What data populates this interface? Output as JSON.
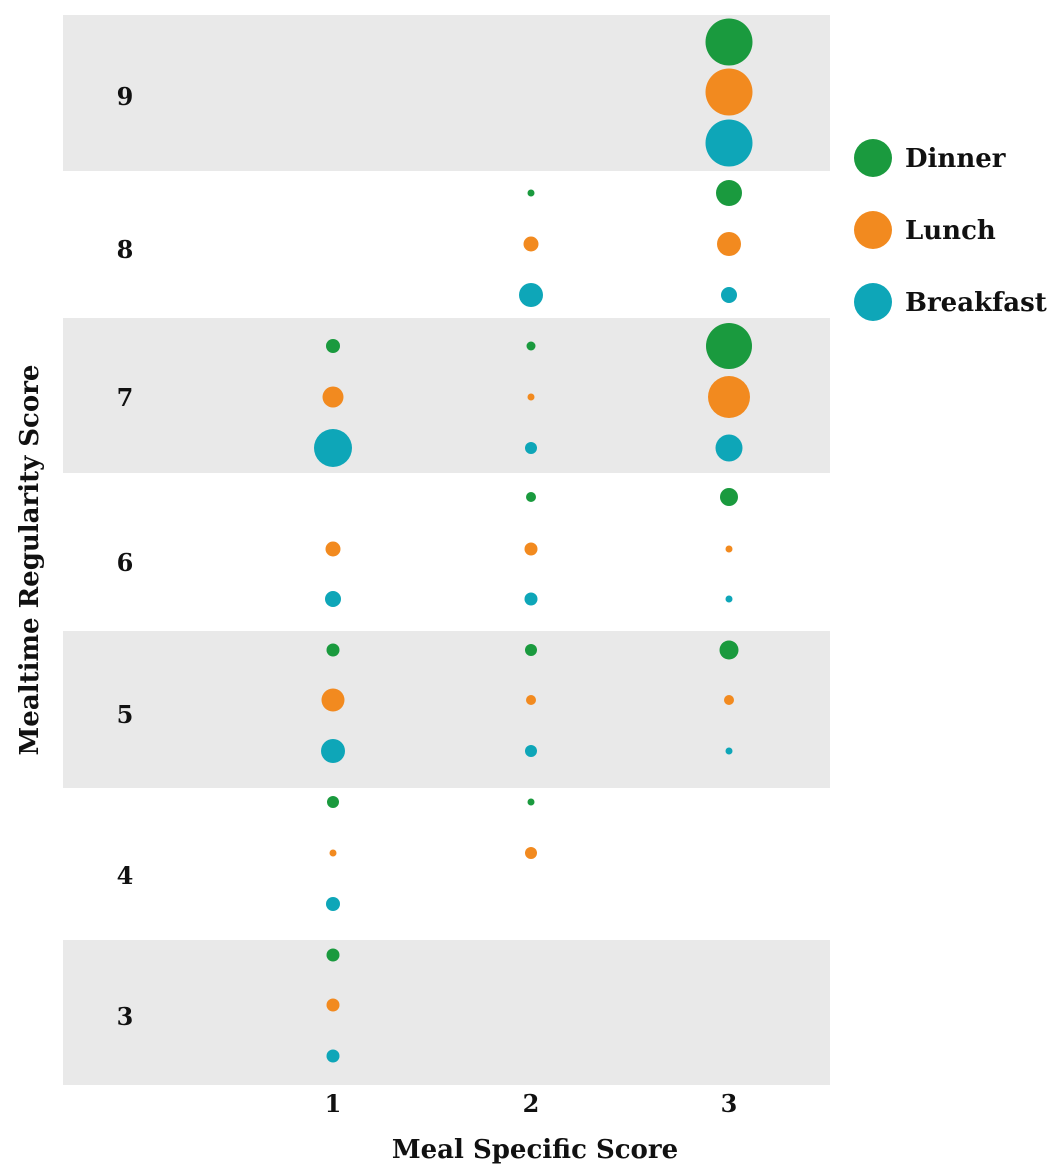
{
  "chart_data": {
    "type": "scatter",
    "subtype": "bubble",
    "xlabel": "Meal Specific Score",
    "ylabel": "Mealtime Regularity Score",
    "x_ticks": [
      "1",
      "2",
      "3"
    ],
    "y_ticks": [
      "3",
      "4",
      "5",
      "6",
      "7",
      "8",
      "9"
    ],
    "xlim": [
      0,
      3.5
    ],
    "ylim": [
      2.5,
      9.5
    ],
    "row_shading": "alternating gray bands for odd scores (3, 5, 7, 9)",
    "legend_position": "right",
    "series": [
      {
        "name": "Dinner",
        "color": "#1a9a3e",
        "points": [
          {
            "x": 1,
            "y": 3,
            "size": 13
          },
          {
            "x": 1,
            "y": 4,
            "size": 12
          },
          {
            "x": 1,
            "y": 5,
            "size": 13
          },
          {
            "x": 1,
            "y": 7,
            "size": 14
          },
          {
            "x": 2,
            "y": 4,
            "size": 7
          },
          {
            "x": 2,
            "y": 5,
            "size": 12
          },
          {
            "x": 2,
            "y": 6,
            "size": 10
          },
          {
            "x": 2,
            "y": 7,
            "size": 9
          },
          {
            "x": 2,
            "y": 8,
            "size": 7
          },
          {
            "x": 3,
            "y": 5,
            "size": 19
          },
          {
            "x": 3,
            "y": 6,
            "size": 18
          },
          {
            "x": 3,
            "y": 7,
            "size": 46
          },
          {
            "x": 3,
            "y": 8,
            "size": 26
          },
          {
            "x": 3,
            "y": 9,
            "size": 47
          }
        ]
      },
      {
        "name": "Lunch",
        "color": "#f28a1f",
        "points": [
          {
            "x": 1,
            "y": 3,
            "size": 13
          },
          {
            "x": 1,
            "y": 4,
            "size": 7
          },
          {
            "x": 1,
            "y": 5,
            "size": 23
          },
          {
            "x": 1,
            "y": 6,
            "size": 15
          },
          {
            "x": 1,
            "y": 7,
            "size": 21
          },
          {
            "x": 2,
            "y": 4,
            "size": 12
          },
          {
            "x": 2,
            "y": 5,
            "size": 10
          },
          {
            "x": 2,
            "y": 6,
            "size": 13
          },
          {
            "x": 2,
            "y": 7,
            "size": 7
          },
          {
            "x": 2,
            "y": 8,
            "size": 15
          },
          {
            "x": 3,
            "y": 5,
            "size": 10
          },
          {
            "x": 3,
            "y": 6,
            "size": 7
          },
          {
            "x": 3,
            "y": 7,
            "size": 42
          },
          {
            "x": 3,
            "y": 8,
            "size": 24
          },
          {
            "x": 3,
            "y": 9,
            "size": 47
          }
        ]
      },
      {
        "name": "Breakfast",
        "color": "#0ea6b8",
        "points": [
          {
            "x": 1,
            "y": 3,
            "size": 13
          },
          {
            "x": 1,
            "y": 4,
            "size": 14
          },
          {
            "x": 1,
            "y": 5,
            "size": 24
          },
          {
            "x": 1,
            "y": 6,
            "size": 16
          },
          {
            "x": 1,
            "y": 7,
            "size": 38
          },
          {
            "x": 2,
            "y": 5,
            "size": 12
          },
          {
            "x": 2,
            "y": 6,
            "size": 13
          },
          {
            "x": 2,
            "y": 7,
            "size": 12
          },
          {
            "x": 2,
            "y": 8,
            "size": 24
          },
          {
            "x": 3,
            "y": 5,
            "size": 7
          },
          {
            "x": 3,
            "y": 6,
            "size": 7
          },
          {
            "x": 3,
            "y": 7,
            "size": 27
          },
          {
            "x": 3,
            "y": 8,
            "size": 16
          },
          {
            "x": 3,
            "y": 9,
            "size": 47
          }
        ]
      }
    ]
  }
}
